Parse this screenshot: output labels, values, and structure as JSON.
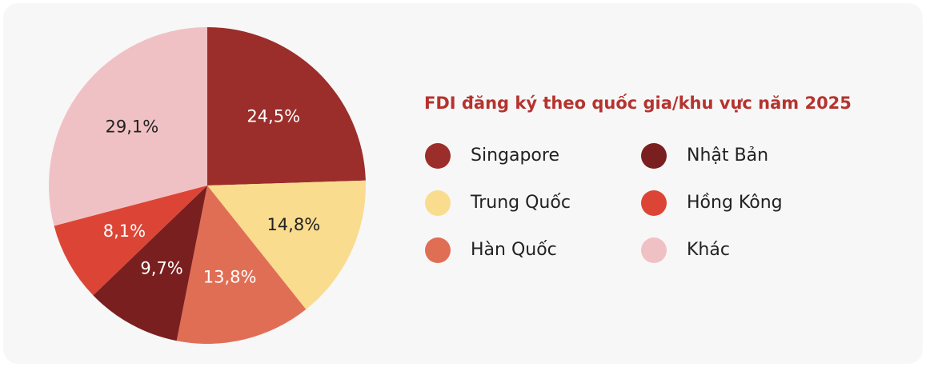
{
  "chart_data": {
    "type": "pie",
    "title": "FDI đăng ký theo quốc gia/khu vực năm 2025",
    "categories": [
      "Singapore",
      "Trung Quốc",
      "Hàn Quốc",
      "Nhật Bản",
      "Hồng Kông",
      "Khác"
    ],
    "values": [
      24.5,
      14.8,
      13.8,
      9.7,
      8.1,
      29.1
    ],
    "value_labels": [
      "24,5%",
      "14,8%",
      "13,8%",
      "9,7%",
      "8,1%",
      "29,1%"
    ],
    "colors": [
      "#9b2e2a",
      "#f9dc8e",
      "#e06e55",
      "#7a1f1f",
      "#dc4535",
      "#f0c1c4"
    ]
  }
}
